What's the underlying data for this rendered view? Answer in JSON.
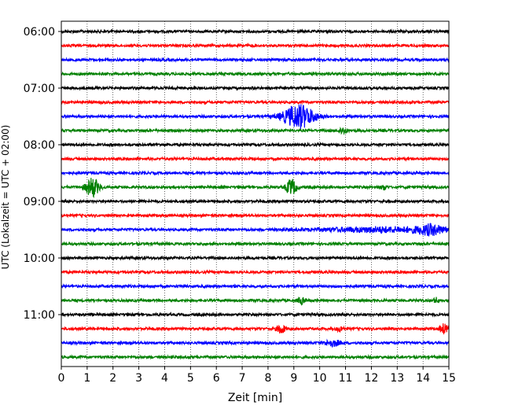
{
  "chart_data": {
    "type": "line",
    "title": "",
    "xlabel": "Zeit  [min]",
    "ylabel": "UTC (Lokalzeit = UTC + 02:00)",
    "xlim": [
      0,
      15
    ],
    "x_ticks": [
      0,
      1,
      2,
      3,
      4,
      5,
      6,
      7,
      8,
      9,
      10,
      11,
      12,
      13,
      14,
      15
    ],
    "x_tick_labels": [
      "0",
      "1",
      "2",
      "3",
      "4",
      "5",
      "6",
      "7",
      "8",
      "9",
      "10",
      "11",
      "12",
      "13",
      "14",
      "15"
    ],
    "y_tick_labels": [
      "06:00",
      "07:00",
      "08:00",
      "09:00",
      "10:00",
      "11:00"
    ],
    "y_tick_rows": [
      0,
      4,
      8,
      12,
      16,
      20
    ],
    "grid": "vertical dotted",
    "colors": [
      "#000000",
      "#ff0000",
      "#0000ff",
      "#008000"
    ],
    "traces": [
      {
        "row": 0,
        "time": "06:00",
        "color": "#000000",
        "events": []
      },
      {
        "row": 1,
        "time": "06:15",
        "color": "#ff0000",
        "events": []
      },
      {
        "row": 2,
        "time": "06:30",
        "color": "#0000ff",
        "events": []
      },
      {
        "row": 3,
        "time": "06:45",
        "color": "#008000",
        "events": []
      },
      {
        "row": 4,
        "time": "07:00",
        "color": "#000000",
        "events": []
      },
      {
        "row": 5,
        "time": "07:15",
        "color": "#ff0000",
        "events": []
      },
      {
        "row": 6,
        "time": "07:30",
        "color": "#0000ff",
        "events": [
          {
            "x": 9.2,
            "amp": 15,
            "width": 0.6
          }
        ]
      },
      {
        "row": 7,
        "time": "07:45",
        "color": "#008000",
        "events": [
          {
            "x": 10.9,
            "amp": 4,
            "width": 0.15
          }
        ]
      },
      {
        "row": 8,
        "time": "08:00",
        "color": "#000000",
        "events": []
      },
      {
        "row": 9,
        "time": "08:15",
        "color": "#ff0000",
        "events": []
      },
      {
        "row": 10,
        "time": "08:30",
        "color": "#0000ff",
        "events": []
      },
      {
        "row": 11,
        "time": "08:45",
        "color": "#008000",
        "events": [
          {
            "x": 1.2,
            "amp": 12,
            "width": 0.25
          },
          {
            "x": 8.9,
            "amp": 10,
            "width": 0.2
          },
          {
            "x": 12.5,
            "amp": 3,
            "width": 0.1
          }
        ]
      },
      {
        "row": 12,
        "time": "09:00",
        "color": "#000000",
        "events": []
      },
      {
        "row": 13,
        "time": "09:15",
        "color": "#ff0000",
        "events": []
      },
      {
        "row": 14,
        "time": "09:30",
        "color": "#0000ff",
        "events": [
          {
            "x": 12.5,
            "amp": 3,
            "width": 2.5
          },
          {
            "x": 14.3,
            "amp": 5,
            "width": 0.5
          }
        ]
      },
      {
        "row": 15,
        "time": "09:45",
        "color": "#008000",
        "events": []
      },
      {
        "row": 16,
        "time": "10:00",
        "color": "#000000",
        "events": []
      },
      {
        "row": 17,
        "time": "10:15",
        "color": "#ff0000",
        "events": []
      },
      {
        "row": 18,
        "time": "10:30",
        "color": "#0000ff",
        "events": []
      },
      {
        "row": 19,
        "time": "10:45",
        "color": "#008000",
        "events": [
          {
            "x": 9.3,
            "amp": 4,
            "width": 0.15
          },
          {
            "x": 14.5,
            "amp": 3,
            "width": 0.1
          }
        ]
      },
      {
        "row": 20,
        "time": "11:00",
        "color": "#000000",
        "events": []
      },
      {
        "row": 21,
        "time": "11:15",
        "color": "#ff0000",
        "events": [
          {
            "x": 8.5,
            "amp": 6,
            "width": 0.15
          },
          {
            "x": 10.8,
            "amp": 3,
            "width": 0.15
          },
          {
            "x": 14.8,
            "amp": 6,
            "width": 0.15
          }
        ]
      },
      {
        "row": 22,
        "time": "11:30",
        "color": "#0000ff",
        "events": [
          {
            "x": 10.5,
            "amp": 4,
            "width": 0.3
          }
        ]
      },
      {
        "row": 23,
        "time": "11:45",
        "color": "#008000",
        "events": []
      }
    ]
  }
}
